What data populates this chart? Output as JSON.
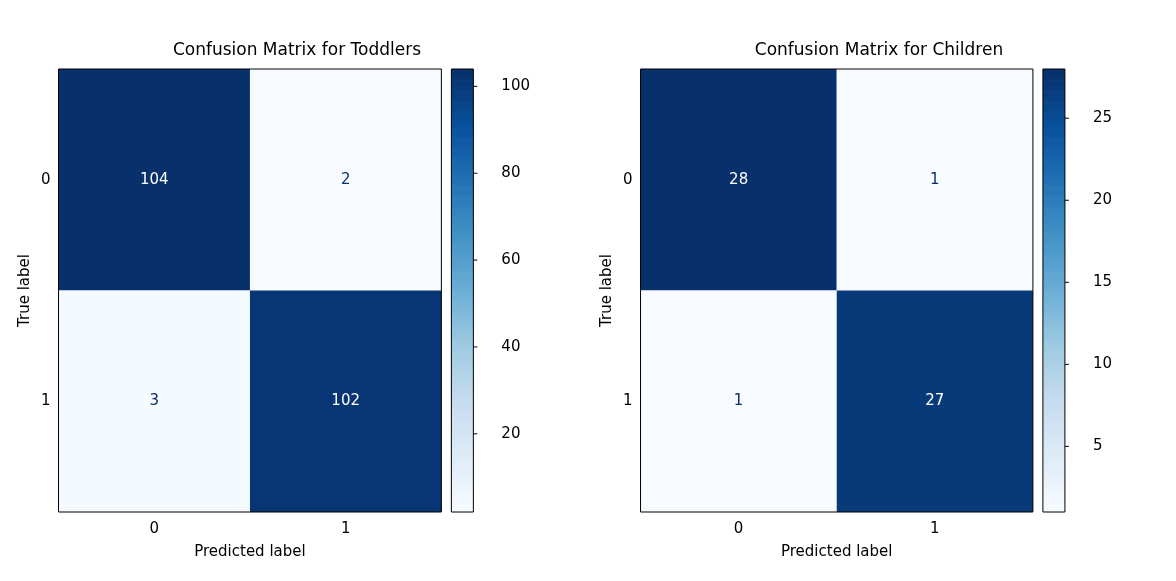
{
  "chart_data": [
    {
      "type": "heatmap",
      "title": "Confusion Matrix for Toddlers",
      "xlabel": "Predicted label",
      "ylabel": "True label",
      "categories": [
        "0",
        "1"
      ],
      "y_categories": [
        "0",
        "1"
      ],
      "cells": [
        [
          104,
          2
        ],
        [
          3,
          102
        ]
      ],
      "data_labels": true,
      "clim": [
        2,
        104
      ],
      "cticks": [
        20,
        40,
        60,
        80,
        100
      ]
    },
    {
      "type": "heatmap",
      "title": "Confusion Matrix for Children",
      "xlabel": "Predicted label",
      "ylabel": "True label",
      "categories": [
        "0",
        "1"
      ],
      "y_categories": [
        "0",
        "1"
      ],
      "cells": [
        [
          28,
          1
        ],
        [
          1,
          27
        ]
      ],
      "data_labels": true,
      "clim": [
        1,
        28
      ],
      "cticks": [
        5,
        10,
        15,
        20,
        25
      ]
    }
  ]
}
